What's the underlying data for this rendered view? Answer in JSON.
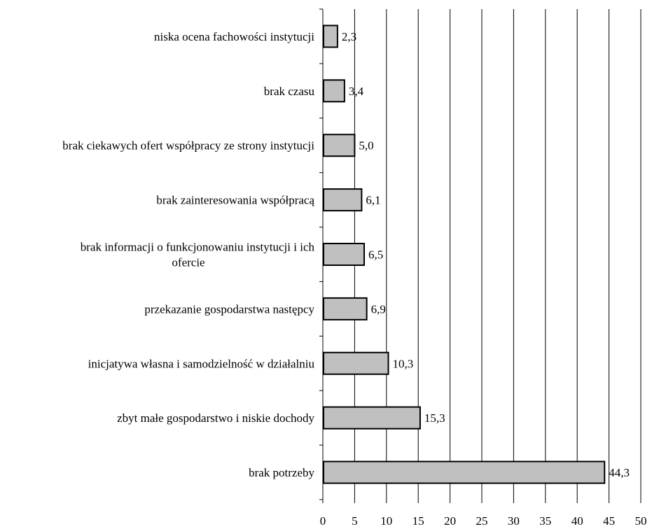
{
  "chart_data": {
    "type": "bar",
    "orientation": "horizontal",
    "categories": [
      "niska ocena fachowości instytucji",
      "brak czasu",
      "brak ciekawych ofert współpracy ze strony instytucji",
      "brak zainteresowania współpracą",
      "brak informacji o funkcjonowaniu instytucji i ich ofercie",
      "przekazanie gospodarstwa następcy",
      "inicjatywa własna i samodzielność w działalniu",
      "zbyt małe gospodarstwo i niskie dochody",
      "brak potrzeby"
    ],
    "category_label_lines": [
      [
        "niska ocena fachowości instytucji"
      ],
      [
        "brak czasu"
      ],
      [
        "brak ciekawych ofert współpracy ze strony instytucji"
      ],
      [
        "brak zainteresowania współpracą"
      ],
      [
        "brak informacji o funkcjonowaniu instytucji i ich",
        "ofercie"
      ],
      [
        "przekazanie gospodarstwa następcy"
      ],
      [
        "inicjatywa własna i samodzielność w działalniu"
      ],
      [
        "zbyt małe gospodarstwo i niskie dochody"
      ],
      [
        "brak potrzeby"
      ]
    ],
    "values": [
      2.3,
      3.4,
      5.0,
      6.1,
      6.5,
      6.9,
      10.3,
      15.3,
      44.3
    ],
    "data_labels": [
      "2,3",
      "3,4",
      "5,0",
      "6,1",
      "6,5",
      "6,9",
      "10,3",
      "15,3",
      "44,3"
    ],
    "x_ticks": [
      0,
      5,
      10,
      15,
      20,
      25,
      30,
      35,
      40,
      45,
      50
    ],
    "x_tick_labels": [
      "0",
      "5",
      "10",
      "15",
      "20",
      "25",
      "30",
      "35",
      "40",
      "45",
      "50"
    ],
    "xlim": [
      0,
      50
    ],
    "title": "",
    "xlabel": "",
    "ylabel": "",
    "grid": "vertical",
    "legend": "none",
    "colors": {
      "bar_fill": "#c0c0c0",
      "bar_stroke": "#000000",
      "grid": "#000000",
      "axis": "#000000",
      "text": "#000000"
    }
  }
}
